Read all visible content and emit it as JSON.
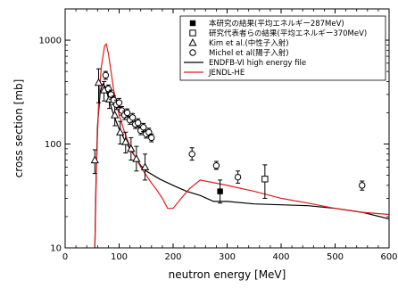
{
  "chart_data": {
    "type": "scatter",
    "xlabel": "neutron energy [MeV]",
    "ylabel": "cross section [mb]",
    "xlim": [
      0,
      600
    ],
    "ylim": [
      10,
      2000
    ],
    "yscale": "log",
    "x_ticks": [
      0,
      100,
      200,
      300,
      400,
      500,
      600
    ],
    "y_ticks": [
      10,
      100,
      1000
    ],
    "x_tick_labels": [
      "0",
      "100",
      "200",
      "300",
      "400",
      "500",
      "600"
    ],
    "y_tick_labels": [
      "10",
      "100",
      "1000"
    ],
    "legend_position": "top-right",
    "series": [
      {
        "name": "本研究の結果(平均エネルギー287MeV)",
        "marker": "filled-square",
        "color": "#000000",
        "points": [
          {
            "x": 287,
            "y": 35,
            "ylo": 27,
            "yhi": 45
          }
        ]
      },
      {
        "name": "研究代表者らの結果(平均エネルギー370MeV)",
        "marker": "open-square",
        "color": "#000000",
        "points": [
          {
            "x": 370,
            "y": 46,
            "ylo": 30,
            "yhi": 63
          }
        ]
      },
      {
        "name": "Kim et al.(中性子入射)",
        "marker": "open-triangle",
        "color": "#000000",
        "points": [
          {
            "x": 55,
            "y": 70,
            "ylo": 52,
            "yhi": 88
          },
          {
            "x": 62,
            "y": 390,
            "ylo": 250,
            "yhi": 530
          },
          {
            "x": 72,
            "y": 330,
            "ylo": 260,
            "yhi": 400
          },
          {
            "x": 82,
            "y": 270,
            "ylo": 220,
            "yhi": 320
          },
          {
            "x": 92,
            "y": 190,
            "ylo": 150,
            "yhi": 240
          },
          {
            "x": 102,
            "y": 130,
            "ylo": 100,
            "yhi": 165
          },
          {
            "x": 112,
            "y": 105,
            "ylo": 82,
            "yhi": 130
          },
          {
            "x": 122,
            "y": 90,
            "ylo": 70,
            "yhi": 115
          },
          {
            "x": 132,
            "y": 72,
            "ylo": 55,
            "yhi": 95
          },
          {
            "x": 148,
            "y": 60,
            "ylo": 45,
            "yhi": 80
          }
        ]
      },
      {
        "name": "Michel et al(陽子入射)",
        "marker": "open-circle",
        "color": "#000000",
        "points": [
          {
            "x": 75,
            "y": 460,
            "ylo": 420,
            "yhi": 500
          },
          {
            "x": 80,
            "y": 340,
            "ylo": 310,
            "yhi": 370
          },
          {
            "x": 85,
            "y": 300,
            "ylo": 270,
            "yhi": 330
          },
          {
            "x": 90,
            "y": 265,
            "ylo": 240,
            "yhi": 290
          },
          {
            "x": 95,
            "y": 240,
            "ylo": 215,
            "yhi": 265
          },
          {
            "x": 100,
            "y": 250,
            "ylo": 225,
            "yhi": 275
          },
          {
            "x": 105,
            "y": 210,
            "ylo": 190,
            "yhi": 230
          },
          {
            "x": 110,
            "y": 190,
            "ylo": 172,
            "yhi": 208
          },
          {
            "x": 115,
            "y": 200,
            "ylo": 182,
            "yhi": 218
          },
          {
            "x": 120,
            "y": 170,
            "ylo": 155,
            "yhi": 185
          },
          {
            "x": 125,
            "y": 180,
            "ylo": 163,
            "yhi": 197
          },
          {
            "x": 130,
            "y": 155,
            "ylo": 141,
            "yhi": 169
          },
          {
            "x": 135,
            "y": 160,
            "ylo": 145,
            "yhi": 175
          },
          {
            "x": 140,
            "y": 135,
            "ylo": 123,
            "yhi": 147
          },
          {
            "x": 145,
            "y": 145,
            "ylo": 132,
            "yhi": 158
          },
          {
            "x": 150,
            "y": 125,
            "ylo": 114,
            "yhi": 136
          },
          {
            "x": 155,
            "y": 130,
            "ylo": 118,
            "yhi": 142
          },
          {
            "x": 160,
            "y": 115,
            "ylo": 105,
            "yhi": 125
          },
          {
            "x": 235,
            "y": 80,
            "ylo": 70,
            "yhi": 92
          },
          {
            "x": 280,
            "y": 62,
            "ylo": 57,
            "yhi": 68
          },
          {
            "x": 320,
            "y": 48,
            "ylo": 42,
            "yhi": 55
          },
          {
            "x": 550,
            "y": 40,
            "ylo": 36,
            "yhi": 44
          }
        ]
      },
      {
        "name": "ENDFB-VI high energy file",
        "type": "line",
        "color": "#000000",
        "points": [
          {
            "x": 55,
            "y": 10
          },
          {
            "x": 57,
            "y": 40
          },
          {
            "x": 60,
            "y": 150
          },
          {
            "x": 65,
            "y": 320
          },
          {
            "x": 70,
            "y": 380
          },
          {
            "x": 75,
            "y": 350
          },
          {
            "x": 80,
            "y": 280
          },
          {
            "x": 90,
            "y": 190
          },
          {
            "x": 100,
            "y": 140
          },
          {
            "x": 110,
            "y": 110
          },
          {
            "x": 120,
            "y": 90
          },
          {
            "x": 130,
            "y": 75
          },
          {
            "x": 140,
            "y": 62
          },
          {
            "x": 150,
            "y": 55
          },
          {
            "x": 175,
            "y": 46
          },
          {
            "x": 200,
            "y": 40
          },
          {
            "x": 225,
            "y": 35
          },
          {
            "x": 250,
            "y": 32
          },
          {
            "x": 275,
            "y": 28
          },
          {
            "x": 300,
            "y": 28
          },
          {
            "x": 350,
            "y": 26.5
          },
          {
            "x": 400,
            "y": 26
          },
          {
            "x": 450,
            "y": 25.5
          },
          {
            "x": 500,
            "y": 24
          },
          {
            "x": 550,
            "y": 22
          },
          {
            "x": 600,
            "y": 19
          }
        ]
      },
      {
        "name": "JENDL-HE",
        "type": "line",
        "color": "#e41b1b",
        "points": [
          {
            "x": 55,
            "y": 10
          },
          {
            "x": 58,
            "y": 60
          },
          {
            "x": 62,
            "y": 250
          },
          {
            "x": 67,
            "y": 550
          },
          {
            "x": 73,
            "y": 880
          },
          {
            "x": 76,
            "y": 920
          },
          {
            "x": 80,
            "y": 750
          },
          {
            "x": 85,
            "y": 500
          },
          {
            "x": 90,
            "y": 330
          },
          {
            "x": 100,
            "y": 190
          },
          {
            "x": 110,
            "y": 130
          },
          {
            "x": 120,
            "y": 95
          },
          {
            "x": 130,
            "y": 75
          },
          {
            "x": 140,
            "y": 60
          },
          {
            "x": 150,
            "y": 50
          },
          {
            "x": 160,
            "y": 42
          },
          {
            "x": 170,
            "y": 36
          },
          {
            "x": 180,
            "y": 30
          },
          {
            "x": 190,
            "y": 24
          },
          {
            "x": 200,
            "y": 24
          },
          {
            "x": 215,
            "y": 30
          },
          {
            "x": 230,
            "y": 37
          },
          {
            "x": 250,
            "y": 45
          },
          {
            "x": 300,
            "y": 40
          },
          {
            "x": 350,
            "y": 35
          },
          {
            "x": 400,
            "y": 30
          },
          {
            "x": 450,
            "y": 27
          },
          {
            "x": 500,
            "y": 24
          },
          {
            "x": 550,
            "y": 22
          },
          {
            "x": 600,
            "y": 21
          }
        ]
      }
    ]
  }
}
